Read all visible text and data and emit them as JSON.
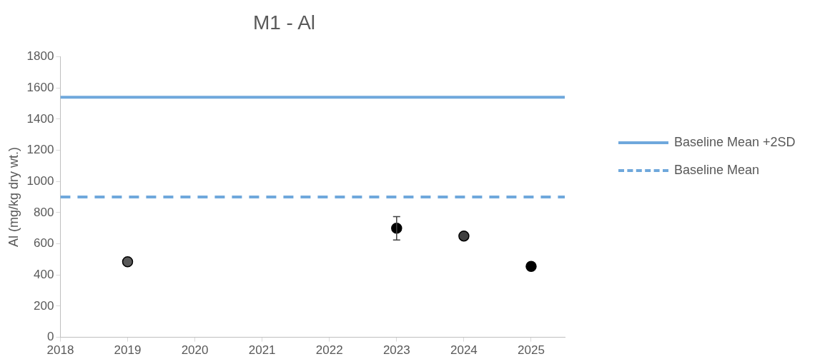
{
  "chart_data": {
    "type": "scatter",
    "title": "M1 - Al",
    "ylabel": "Al (mg/kg dry wt.)",
    "xlim": [
      2018,
      2025.5
    ],
    "xticks": [
      2018,
      2019,
      2020,
      2021,
      2022,
      2023,
      2024,
      2025
    ],
    "ylim": [
      0,
      1800
    ],
    "yticks": [
      0,
      200,
      400,
      600,
      800,
      1000,
      1200,
      1400,
      1600,
      1800
    ],
    "grid": false,
    "legend": "right",
    "marker": "circle",
    "series": [
      {
        "type": "scatter",
        "x": [
          2019,
          2023,
          2024,
          2025
        ],
        "values": [
          485,
          700,
          650,
          455
        ],
        "colors": [
          "#595959",
          "#000000",
          "#404040",
          "#000000"
        ],
        "errors": [
          null,
          75,
          null,
          null
        ]
      },
      {
        "type": "line",
        "name": "Baseline Mean +2SD",
        "color": "#6fa8dc",
        "line_style": "solid",
        "marker": "none",
        "x": [
          2018,
          2025.5
        ],
        "values": [
          1540,
          1540
        ]
      },
      {
        "type": "line",
        "name": "Baseline Mean",
        "color": "#6fa8dc",
        "line_style": "dashed",
        "marker": "none",
        "x": [
          2018,
          2025.5
        ],
        "values": [
          900,
          900
        ]
      }
    ]
  }
}
